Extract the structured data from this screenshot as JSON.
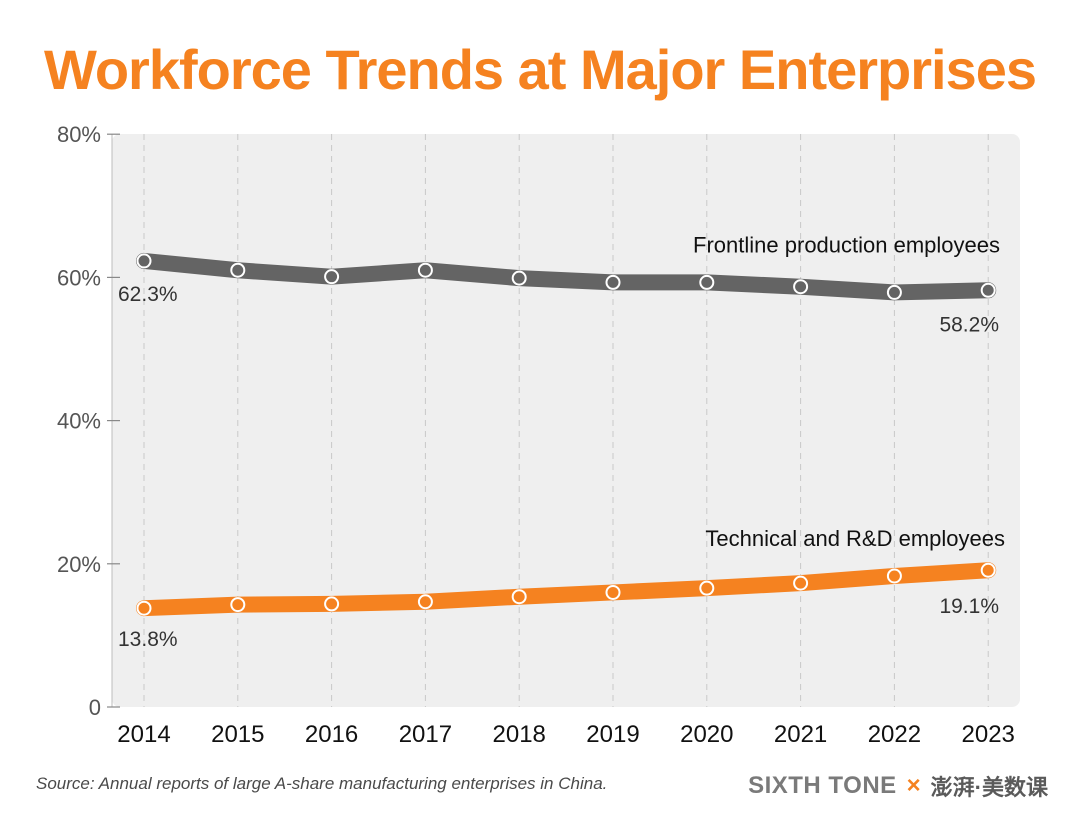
{
  "colors": {
    "accent": "#f58220",
    "frontline_series": "#646464",
    "plot_background": "#efefef",
    "text": "#333333",
    "axis_text": "#555555"
  },
  "chart_data": {
    "type": "line",
    "title": "Workforce Trends at Major Enterprises",
    "x": [
      "2014",
      "2015",
      "2016",
      "2017",
      "2018",
      "2019",
      "2020",
      "2021",
      "2022",
      "2023"
    ],
    "y_ticks": [
      "0",
      "20%",
      "40%",
      "60%",
      "80%"
    ],
    "ylim": [
      0,
      80
    ],
    "grid": "vertical dashed",
    "series": [
      {
        "name": "Frontline production employees",
        "values": [
          62.3,
          61.0,
          60.1,
          61.0,
          59.9,
          59.3,
          59.3,
          58.7,
          57.9,
          58.2
        ],
        "start_label": "62.3%",
        "end_label": "58.2%",
        "color": "#646464"
      },
      {
        "name": "Technical and R&D employees",
        "values": [
          13.8,
          14.3,
          14.4,
          14.7,
          15.4,
          16.0,
          16.6,
          17.3,
          18.3,
          19.1
        ],
        "start_label": "13.8%",
        "end_label": "19.1%",
        "color": "#f58220"
      }
    ]
  },
  "footer": {
    "source": "Source: Annual reports of large A-share manufacturing enterprises in China.",
    "brand": "SIXTH TONE",
    "separator": "×",
    "partner": "澎湃·美数课"
  }
}
